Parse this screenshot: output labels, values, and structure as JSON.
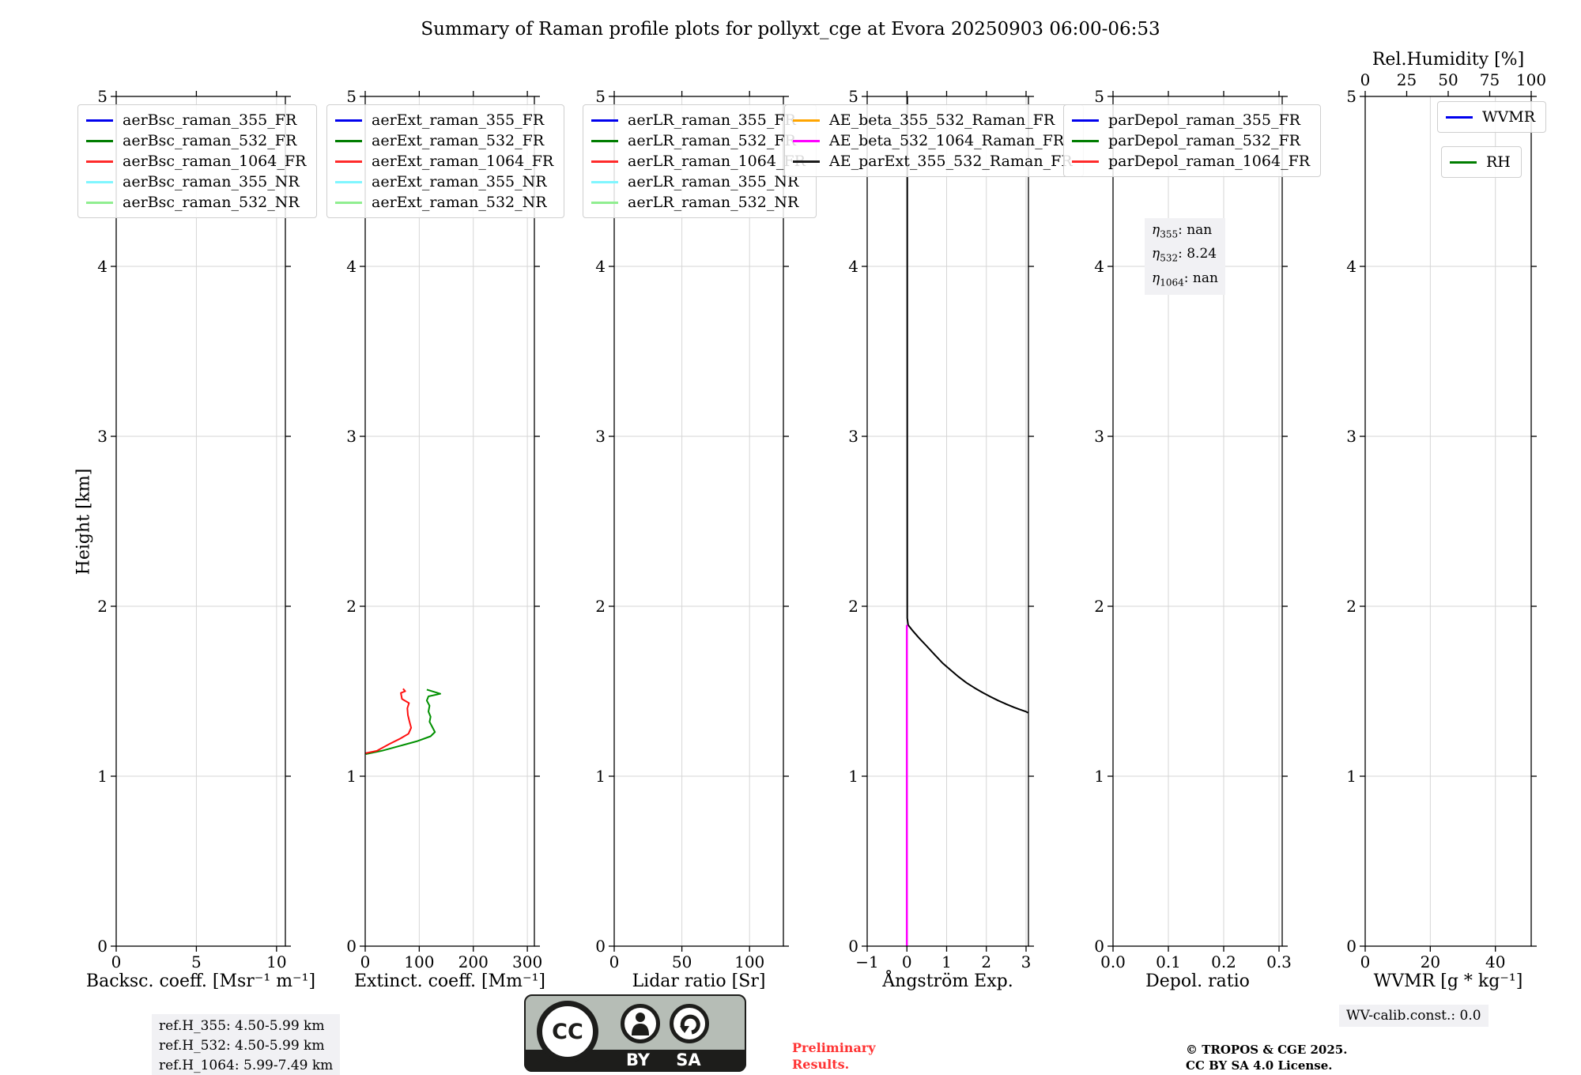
{
  "chart_data": {
    "type": "line",
    "title": "Summary of Raman profile plots for pollyxt_cge at Evora 20250903 06:00-06:53",
    "ylabel": "Height [km]",
    "ylim": [
      0,
      5
    ],
    "yticks": {
      "values": [
        0,
        1,
        2,
        3,
        4,
        5
      ],
      "labels": [
        "0",
        "1",
        "2",
        "3",
        "4",
        "5"
      ]
    },
    "grid": true,
    "panels": [
      {
        "id": "backscatter",
        "xlabel": "Backsc. coeff. [Msr⁻¹ m⁻¹]",
        "xlim": [
          0,
          10.55
        ],
        "xticks": {
          "values": [
            0,
            5,
            10
          ],
          "labels": [
            "0",
            "5",
            "10"
          ]
        },
        "legend": [
          {
            "label": "aerBsc_raman_355_FR",
            "color": "#0000ee"
          },
          {
            "label": "aerBsc_raman_532_FR",
            "color": "#007d00"
          },
          {
            "label": "aerBsc_raman_1064_FR",
            "color": "#ff2a2a"
          },
          {
            "label": "aerBsc_raman_355_NR",
            "color": "#80f6ff"
          },
          {
            "label": "aerBsc_raman_532_NR",
            "color": "#90ee90"
          }
        ],
        "series": []
      },
      {
        "id": "extinction",
        "xlabel": "Extinct. coeff. [Mm⁻¹]",
        "xlim": [
          0,
          313
        ],
        "xticks": {
          "values": [
            0,
            100,
            200,
            300
          ],
          "labels": [
            "0",
            "100",
            "200",
            "300"
          ]
        },
        "legend": [
          {
            "label": "aerExt_raman_355_FR",
            "color": "#0000ee"
          },
          {
            "label": "aerExt_raman_532_FR",
            "color": "#007d00"
          },
          {
            "label": "aerExt_raman_1064_FR",
            "color": "#ff2a2a"
          },
          {
            "label": "aerExt_raman_355_NR",
            "color": "#80f6ff"
          },
          {
            "label": "aerExt_raman_532_NR",
            "color": "#90ee90"
          }
        ],
        "series": [
          {
            "name": "aerExt_raman_532_FR",
            "color": "#009000",
            "width": 2,
            "points": [
              [
                1,
                1.13
              ],
              [
                31,
                1.15
              ],
              [
                66,
                1.18
              ],
              [
                95,
                1.205
              ],
              [
                121,
                1.235
              ],
              [
                129,
                1.26
              ],
              [
                124,
                1.29
              ],
              [
                119,
                1.32
              ],
              [
                121,
                1.35
              ],
              [
                117,
                1.38
              ],
              [
                119,
                1.415
              ],
              [
                114,
                1.445
              ],
              [
                117,
                1.47
              ],
              [
                139,
                1.485
              ],
              [
                114,
                1.51
              ]
            ]
          },
          {
            "name": "aerExt_raman_1064_FR",
            "color": "#ff1010",
            "width": 2,
            "points": [
              [
                0,
                1.135
              ],
              [
                22,
                1.15
              ],
              [
                45,
                1.19
              ],
              [
                64,
                1.22
              ],
              [
                80,
                1.25
              ],
              [
                85,
                1.285
              ],
              [
                82,
                1.32
              ],
              [
                79,
                1.36
              ],
              [
                78,
                1.4
              ],
              [
                81,
                1.43
              ],
              [
                68,
                1.455
              ],
              [
                66,
                1.49
              ],
              [
                74,
                1.5
              ],
              [
                70,
                1.515
              ]
            ]
          }
        ]
      },
      {
        "id": "lidar-ratio",
        "xlabel": "Lidar ratio [Sr]",
        "xlim": [
          0,
          125
        ],
        "xticks": {
          "values": [
            0,
            50,
            100
          ],
          "labels": [
            "0",
            "50",
            "100"
          ]
        },
        "legend": [
          {
            "label": "aerLR_raman_355_FR",
            "color": "#0000ee"
          },
          {
            "label": "aerLR_raman_532_FR",
            "color": "#007d00"
          },
          {
            "label": "aerLR_raman_1064_FR",
            "color": "#ff2a2a"
          },
          {
            "label": "aerLR_raman_355_NR",
            "color": "#80f6ff"
          },
          {
            "label": "aerLR_raman_532_NR",
            "color": "#90ee90"
          }
        ],
        "series": []
      },
      {
        "id": "angstrom",
        "xlabel": "Ångström Exp.",
        "xlim": [
          -1,
          3.06
        ],
        "xticks": {
          "values": [
            -1,
            0,
            1,
            2,
            3
          ],
          "labels": [
            "−1",
            "0",
            "1",
            "2",
            "3"
          ]
        },
        "legend": [
          {
            "label": "AE_beta_355_532_Raman_FR",
            "color": "#ffa500"
          },
          {
            "label": "AE_beta_532_1064_Raman_FR",
            "color": "#ff00ff"
          },
          {
            "label": "AE_parExt_355_532_Raman_FR",
            "color": "#1a1a1a"
          }
        ],
        "series": [
          {
            "name": "AE_parExt_355_532_Raman_FR",
            "color": "#000000",
            "width": 2,
            "points": [
              [
                0.01,
                5
              ],
              [
                0.01,
                1.93
              ],
              [
                0.03,
                1.89
              ],
              [
                0.15,
                1.855
              ],
              [
                0.3,
                1.815
              ],
              [
                0.5,
                1.765
              ],
              [
                0.7,
                1.715
              ],
              [
                0.9,
                1.665
              ],
              [
                1.1,
                1.625
              ],
              [
                1.3,
                1.585
              ],
              [
                1.5,
                1.55
              ],
              [
                1.7,
                1.52
              ],
              [
                1.9,
                1.493
              ],
              [
                2.1,
                1.468
              ],
              [
                2.3,
                1.445
              ],
              [
                2.5,
                1.424
              ],
              [
                2.7,
                1.405
              ],
              [
                2.85,
                1.392
              ],
              [
                3.0,
                1.38
              ],
              [
                3.05,
                1.373
              ]
            ]
          },
          {
            "name": "AE_beta_532_1064_Raman_FR",
            "color": "#ff00ff",
            "width": 2.5,
            "points": [
              [
                0,
                0
              ],
              [
                0,
                1.89
              ]
            ]
          }
        ]
      },
      {
        "id": "depol",
        "xlabel": "Depol. ratio",
        "xlim": [
          0,
          0.3057
        ],
        "xticks": {
          "values": [
            0,
            0.1,
            0.2,
            0.3
          ],
          "labels": [
            "0.0",
            "0.1",
            "0.2",
            "0.3"
          ]
        },
        "legend": [
          {
            "label": "parDepol_raman_355_FR",
            "color": "#0000ee"
          },
          {
            "label": "parDepol_raman_532_FR",
            "color": "#007d00"
          },
          {
            "label": "parDepol_raman_1064_FR",
            "color": "#ff2a2a"
          }
        ],
        "annotation": {
          "symbol": "η",
          "lines": [
            {
              "sub": "355",
              "value": "nan"
            },
            {
              "sub": "532",
              "value": "8.24"
            },
            {
              "sub": "1064",
              "value": "nan"
            }
          ]
        },
        "series": []
      },
      {
        "id": "wvmr",
        "xlabel": "WVMR [g * kg⁻¹]",
        "xlim": [
          0,
          51
        ],
        "xticks": {
          "values": [
            0,
            20,
            40
          ],
          "labels": [
            "0",
            "20",
            "40"
          ]
        },
        "top_axis": {
          "label": "Rel.Humidity [%]",
          "lim": [
            0,
            100
          ],
          "ticks": {
            "values": [
              0,
              25,
              50,
              75,
              100
            ],
            "labels": [
              "0",
              "25",
              "50",
              "75",
              "100"
            ]
          }
        },
        "legends": [
          [
            {
              "label": "WVMR",
              "color": "#0000ee"
            }
          ],
          [
            {
              "label": "RH",
              "color": "#007d00"
            }
          ]
        ],
        "series": []
      }
    ]
  },
  "footer": {
    "ref_heights": [
      "ref.H_355: 4.50-5.99 km",
      "ref.H_532: 4.50-5.99 km",
      "ref.H_1064: 5.99-7.49 km"
    ],
    "wv_calib": "WV-calib.const.: 0.0",
    "preliminary": [
      "Preliminary",
      "Results."
    ],
    "preliminary_color": "#ff3333",
    "copyright": [
      "© TROPOS & CGE 2025.",
      "CC BY SA 4.0 License."
    ],
    "cc_badge": {
      "cc": "CC",
      "by": "BY",
      "sa": "SA"
    }
  }
}
